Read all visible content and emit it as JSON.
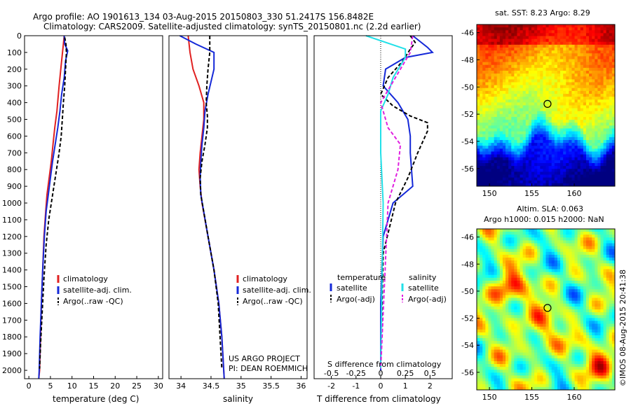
{
  "header": {
    "title": "Argo profile: AO 1901613_134 03-Aug-2015 20150803_330 51.2417S 156.8482E",
    "subtitle": "Climatology: CARS2009. Satellite-adjusted climatology: synTS_20150801.nc (2.2d earlier)"
  },
  "colors": {
    "climatology": "#e02020",
    "satellite": "#1428d8",
    "argo_raw": "#000000",
    "sal_satellite": "#22e0e8",
    "sal_argo": "#e020e0"
  },
  "chart_data": [
    {
      "type": "line",
      "xlabel": "temperature (deg C)",
      "ylabel": "",
      "xlim": [
        -1,
        31
      ],
      "ylim": [
        2050,
        0
      ],
      "xticks": [
        "0",
        "5",
        "10",
        "15",
        "20",
        "25",
        "30"
      ],
      "yticks": [
        "0",
        "100",
        "200",
        "300",
        "400",
        "500",
        "600",
        "700",
        "800",
        "900",
        "1000",
        "1100",
        "1200",
        "1300",
        "1400",
        "1500",
        "1600",
        "1700",
        "1800",
        "1900",
        "2000"
      ],
      "legend": {
        "placement": "lower-center",
        "entries": [
          "climatology",
          "satellite-adj. clim.",
          "Argo(..raw -QC)"
        ]
      },
      "series": [
        {
          "name": "climatology",
          "style": "solid",
          "x": [
            8.2,
            8.0,
            7.6,
            7.0,
            6.5,
            6.0,
            5.6,
            5.2,
            4.7,
            4.2,
            3.9,
            3.5,
            3.2,
            2.9,
            2.7,
            2.5,
            2.3
          ],
          "y": [
            0,
            50,
            150,
            300,
            450,
            550,
            650,
            750,
            850,
            950,
            1050,
            1200,
            1400,
            1600,
            1800,
            2000,
            2050
          ]
        },
        {
          "name": "satellite-adj. clim.",
          "style": "solid",
          "x": [
            8.2,
            8.3,
            9.0,
            8.5,
            8.2,
            7.6,
            7.2,
            6.7,
            6.1,
            5.5,
            5.0,
            4.5,
            4.0,
            3.6,
            3.2,
            2.9,
            2.6,
            2.4,
            2.3
          ],
          "y": [
            0,
            50,
            90,
            150,
            250,
            350,
            450,
            550,
            650,
            750,
            850,
            950,
            1050,
            1200,
            1400,
            1600,
            1800,
            2000,
            2050
          ]
        },
        {
          "name": "Argo(..raw -QC)",
          "style": "dashed",
          "x": [
            8.3,
            8.6,
            8.7,
            8.5,
            8.3,
            8.0,
            7.8,
            7.5,
            7.0,
            6.4,
            5.8,
            5.2,
            4.6,
            4.0,
            3.5,
            3.1,
            2.7,
            2.5
          ],
          "y": [
            10,
            50,
            100,
            200,
            300,
            400,
            480,
            600,
            700,
            800,
            900,
            1000,
            1100,
            1250,
            1450,
            1650,
            1850,
            1990
          ]
        }
      ]
    },
    {
      "type": "line",
      "xlabel": "salinity",
      "xlim": [
        33.8,
        36.1
      ],
      "ylim": [
        2050,
        0
      ],
      "xticks": [
        "34",
        "34.5",
        "35",
        "35.5",
        "36"
      ],
      "legend": {
        "placement": "lower-center",
        "entries": [
          "climatology",
          "satellite-adj. clim.",
          "Argo(..raw -QC)"
        ]
      },
      "annotation": [
        "US ARGO PROJECT",
        "PI: DEAN ROEMMICH"
      ],
      "series": [
        {
          "name": "climatology",
          "style": "solid",
          "x": [
            34.12,
            34.15,
            34.2,
            34.3,
            34.38,
            34.38,
            34.35,
            34.32,
            34.3,
            34.32,
            34.35,
            34.45,
            34.55,
            34.63,
            34.68,
            34.72
          ],
          "y": [
            0,
            100,
            200,
            300,
            400,
            500,
            600,
            700,
            800,
            900,
            1000,
            1200,
            1400,
            1600,
            1800,
            2050
          ]
        },
        {
          "name": "satellite-adj. clim.",
          "style": "solid",
          "x": [
            33.98,
            34.25,
            34.55,
            34.55,
            34.45,
            34.4,
            34.38,
            34.35,
            34.33,
            34.32,
            34.33,
            34.45,
            34.55,
            34.63,
            34.68,
            34.72
          ],
          "y": [
            0,
            50,
            100,
            200,
            350,
            450,
            550,
            650,
            750,
            850,
            950,
            1200,
            1400,
            1600,
            1800,
            2050
          ]
        },
        {
          "name": "Argo(..raw -QC)",
          "style": "dashed",
          "x": [
            34.48,
            34.48,
            34.45,
            34.43,
            34.42,
            34.44,
            34.44,
            34.4,
            34.35,
            34.32,
            34.33,
            34.45,
            34.55,
            34.62,
            34.68
          ],
          "y": [
            0,
            100,
            200,
            300,
            400,
            480,
            550,
            650,
            750,
            850,
            950,
            1200,
            1400,
            1600,
            1990
          ]
        }
      ]
    },
    {
      "type": "line",
      "xlabel": "T difference from climatology",
      "xlabel_top": "S difference from climatology",
      "xlim": [
        -2.7,
        2.9
      ],
      "ylim": [
        2050,
        0
      ],
      "xticks": [
        "-2",
        "-1",
        "0",
        "1",
        "2"
      ],
      "xticks_top": [
        "-0.5",
        "-0.25",
        "0",
        "0.25",
        "0.5"
      ],
      "legend": {
        "placement": "center",
        "group_titles": [
          "temperature",
          "salinity"
        ],
        "entries": [
          "satellite",
          "Argo(-adj)",
          "satellite",
          "Argo(-adj)"
        ]
      },
      "series": [
        {
          "name": "temperature satellite",
          "style": "solid",
          "x": [
            1.3,
            1.9,
            2.1,
            1.0,
            0.2,
            0.1,
            0.7,
            1.1,
            1.2,
            1.2,
            1.3,
            0.5,
            0.1,
            0.0,
            0.0
          ],
          "y": [
            0,
            70,
            100,
            130,
            200,
            300,
            400,
            500,
            600,
            700,
            900,
            1000,
            1200,
            1600,
            2000
          ]
        },
        {
          "name": "temperature Argo(-adj)",
          "style": "dashed",
          "x": [
            1.2,
            1.4,
            1.2,
            0.9,
            0.3,
            0.0,
            0.5,
            1.2,
            1.9,
            1.9,
            1.5,
            1.1,
            0.6,
            0.1,
            0.0
          ],
          "y": [
            0,
            40,
            80,
            150,
            250,
            350,
            420,
            480,
            520,
            570,
            700,
            850,
            1000,
            1300,
            1990
          ]
        },
        {
          "name": "salinity satellite",
          "style": "solid",
          "x": [
            -0.6,
            1.0,
            1.0,
            0.5,
            0.3,
            0.0,
            0.0,
            0.1,
            0.0
          ],
          "y": [
            0,
            80,
            130,
            250,
            350,
            450,
            700,
            1000,
            1990
          ]
        },
        {
          "name": "salinity Argo(-adj)",
          "style": "dashed",
          "x": [
            1.3,
            1.2,
            0.8,
            0.0,
            0.3,
            0.8,
            0.7,
            0.3,
            0.0
          ],
          "y": [
            0,
            100,
            200,
            400,
            550,
            650,
            800,
            1000,
            1990
          ]
        }
      ]
    },
    {
      "type": "heatmap",
      "title": "sat. SST: 8.23 Argo: 8.29",
      "xticks": [
        "150",
        "155",
        "160"
      ],
      "yticks": [
        "-46",
        "-48",
        "-50",
        "-52",
        "-54",
        "-56"
      ],
      "xlim": [
        148.5,
        164.8
      ],
      "ylim": [
        -57.3,
        -45.4
      ],
      "marker": {
        "lon": 156.85,
        "lat": -51.24
      }
    },
    {
      "type": "heatmap",
      "title": "Altim. SLA: 0.063",
      "subtitle": "Argo h1000: 0.015 h2000: NaN",
      "xticks": [
        "150",
        "155",
        "160"
      ],
      "yticks": [
        "-46",
        "-48",
        "-50",
        "-52",
        "-54",
        "-56"
      ],
      "xlim": [
        148.5,
        164.8
      ],
      "ylim": [
        -57.3,
        -45.4
      ],
      "marker": {
        "lon": 156.85,
        "lat": -51.24
      }
    }
  ],
  "credit": "©IMOS 08-Aug-2015 20:41:38"
}
